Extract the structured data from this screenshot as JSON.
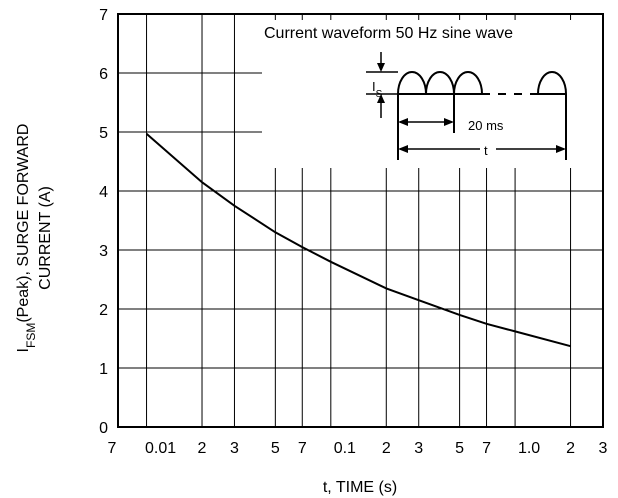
{
  "chart_data": {
    "type": "line",
    "x_scale": "log",
    "y_scale": "linear",
    "xlim": [
      0.007,
      3
    ],
    "ylim": [
      0,
      7
    ],
    "x_tick_labels": [
      "7",
      "0.01",
      "2",
      "3",
      "5",
      "7",
      "0.1",
      "2",
      "3",
      "5",
      "7",
      "1.0",
      "2",
      "3"
    ],
    "x_tick_values": [
      0.007,
      0.01,
      0.02,
      0.03,
      0.05,
      0.07,
      0.1,
      0.2,
      0.3,
      0.5,
      0.7,
      1.0,
      2,
      3
    ],
    "y_ticks": [
      0,
      1,
      2,
      3,
      4,
      5,
      6,
      7
    ],
    "xlabel": "t, TIME (s)",
    "ylabel_main": "I",
    "ylabel_sub": "FSM",
    "ylabel_rest": "(Peak), SURGE FORWARD",
    "ylabel_line2": "CURRENT (A)",
    "grid": true,
    "series": [
      {
        "x": [
          0.01,
          0.02,
          0.03,
          0.05,
          0.07,
          0.1,
          0.2,
          0.3,
          0.5,
          0.7,
          1.0,
          2.0
        ],
        "y": [
          4.97,
          4.15,
          3.75,
          3.3,
          3.05,
          2.8,
          2.35,
          2.15,
          1.9,
          1.75,
          1.62,
          1.37
        ]
      }
    ],
    "inset": {
      "title": "Current waveform 50 Hz sine wave",
      "peak_label_main": "I",
      "peak_label_sub": "S",
      "period_label": "20 ms",
      "duration_label": "t"
    }
  }
}
